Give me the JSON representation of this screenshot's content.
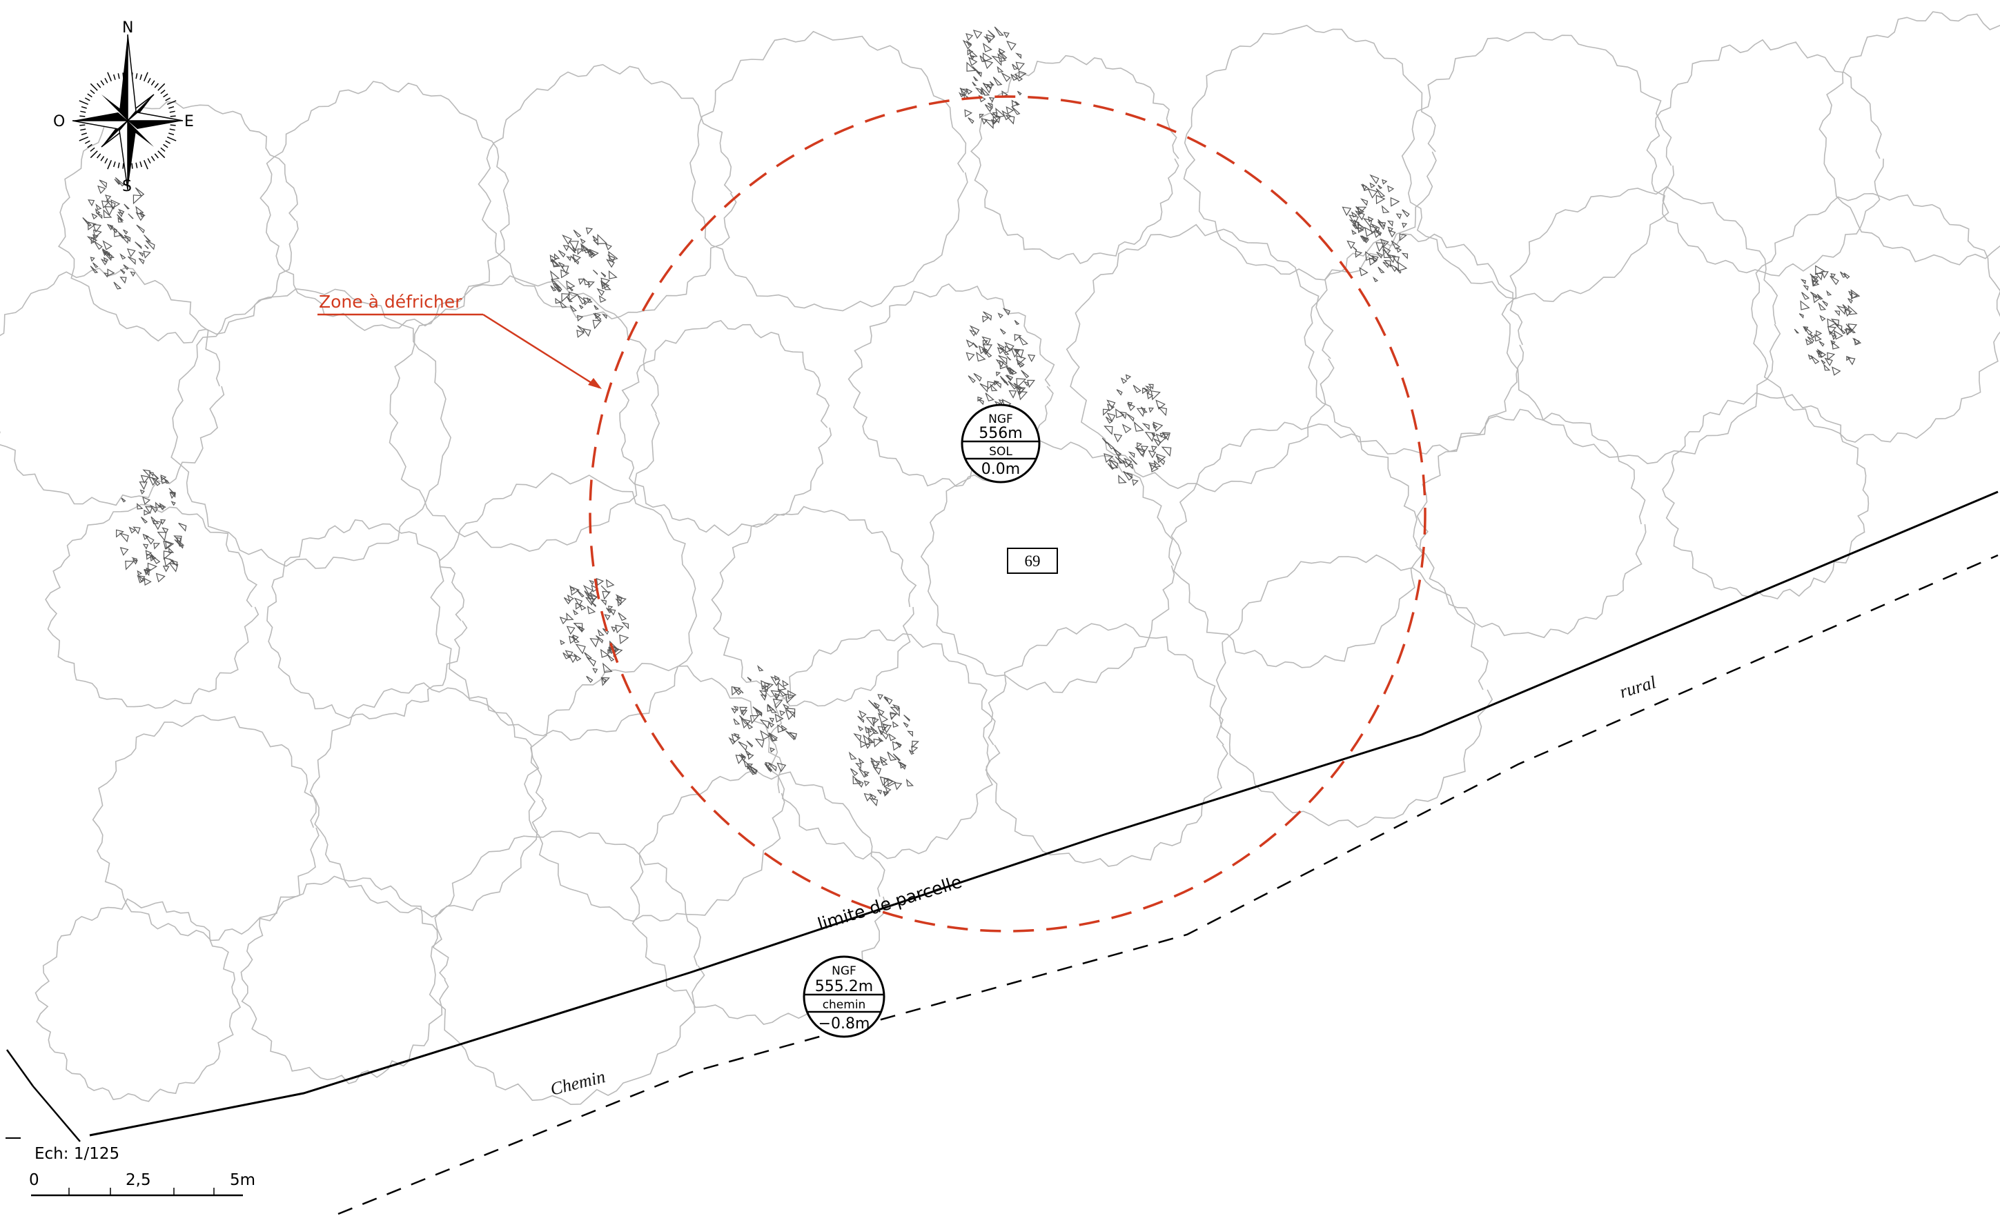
{
  "compass": {
    "north": "N",
    "south": "S",
    "east": "E",
    "west": "O"
  },
  "zone": {
    "label": "Zone à défricher",
    "color": "#d23a1e"
  },
  "markers": {
    "top": {
      "line1": "NGF",
      "line2": "556m",
      "line3": "SOL",
      "line4": "0.0m"
    },
    "bottom": {
      "line1": "NGF",
      "line2": "555.2m",
      "line3": "chemin",
      "line4": "−0.8m"
    }
  },
  "parcel_number": "69",
  "labels": {
    "limit": "limite de parcelle",
    "rural": "rural",
    "chemin": "Chemin"
  },
  "scale": {
    "ech": "Ech:  1/125",
    "tick0": "0",
    "tick_mid": "2,5",
    "tick_end": "5m"
  },
  "colors": {
    "tree_outline": "#b9b9b9",
    "crown_hatch": "#555555",
    "line": "#000000"
  }
}
